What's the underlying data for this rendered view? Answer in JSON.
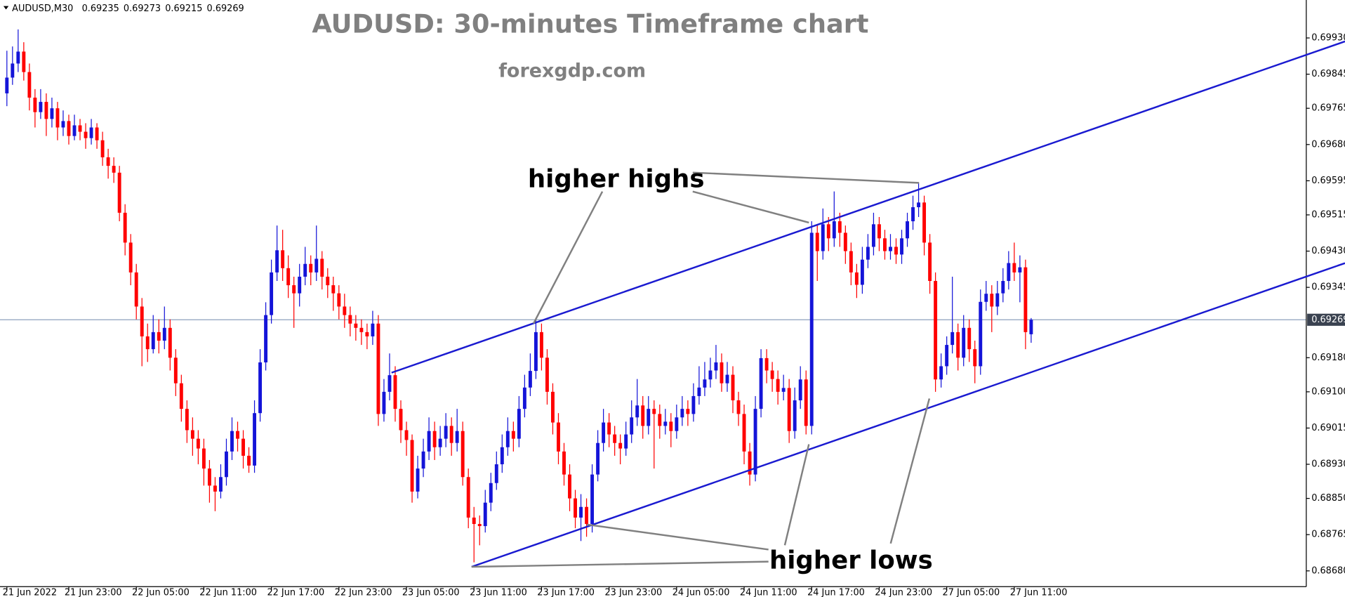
{
  "chart_data": {
    "type": "candlestick",
    "title": "AUDUSD: 30-minutes Timeframe chart",
    "subtitle": "forexgdp.com",
    "symbol": "AUDUSD,M30",
    "header_values": [
      0.69235,
      0.69273,
      0.69215,
      0.69269
    ],
    "annotations": [
      "higher highs",
      "higher lows"
    ],
    "up_color": "#1414d8",
    "down_color": "#ff0000",
    "grid": false,
    "ylim": [
      0.68643,
      0.70019
    ],
    "yticks": [
      {
        "value": 0.6993,
        "label": "0.69930"
      },
      0.69845,
      0.69765,
      {
        "value": 0.6968,
        "label": "0.69680"
      },
      0.69595,
      0.69515,
      {
        "value": 0.6943,
        "label": "0.69430"
      },
      0.69345,
      {
        "value": 0.6918,
        "label": "0.69180"
      },
      {
        "value": 0.691,
        "label": "0.69100"
      },
      0.69015,
      {
        "value": 0.6893,
        "label": "0.68930"
      },
      {
        "value": 0.6885,
        "label": "0.68850"
      },
      0.68765,
      {
        "value": 0.6868,
        "label": "0.68680"
      }
    ],
    "last_price": 0.69269,
    "categories": [
      "21 Jun 2022",
      null,
      null,
      null,
      null,
      null,
      null,
      null,
      null,
      null,
      null,
      "21 Jun 23:00",
      null,
      null,
      null,
      null,
      null,
      null,
      null,
      null,
      null,
      null,
      null,
      "22 Jun 05:00",
      null,
      null,
      null,
      null,
      null,
      null,
      null,
      null,
      null,
      null,
      null,
      "22 Jun 11:00",
      null,
      null,
      null,
      null,
      null,
      null,
      null,
      null,
      null,
      null,
      null,
      "22 Jun 17:00",
      null,
      null,
      null,
      null,
      null,
      null,
      null,
      null,
      null,
      null,
      null,
      "22 Jun 23:00",
      null,
      null,
      null,
      null,
      null,
      null,
      null,
      null,
      null,
      null,
      null,
      "23 Jun 05:00",
      null,
      null,
      null,
      null,
      null,
      null,
      null,
      null,
      null,
      null,
      null,
      "23 Jun 11:00",
      null,
      null,
      null,
      null,
      null,
      null,
      null,
      null,
      null,
      null,
      null,
      "23 Jun 17:00",
      null,
      null,
      null,
      null,
      null,
      null,
      null,
      null,
      null,
      null,
      null,
      "23 Jun 23:00",
      null,
      null,
      null,
      null,
      null,
      null,
      null,
      null,
      null,
      null,
      null,
      "24 Jun 05:00",
      null,
      null,
      null,
      null,
      null,
      null,
      null,
      null,
      null,
      null,
      null,
      "24 Jun 11:00",
      null,
      null,
      null,
      null,
      null,
      null,
      null,
      null,
      null,
      null,
      null,
      "24 Jun 17:00",
      null,
      null,
      null,
      null,
      null,
      null,
      null,
      null,
      null,
      null,
      null,
      "24 Jun 23:00",
      null,
      null,
      null,
      null,
      null,
      null,
      null,
      null,
      null,
      null,
      null,
      "27 Jun 05:00",
      null,
      null,
      null,
      null,
      null,
      null,
      null,
      null,
      null,
      null,
      null,
      "27 Jun 11:00",
      null,
      null,
      null
    ],
    "candles": [
      [
        0.698,
        0.699,
        0.6977,
        0.69837
      ],
      [
        0.69837,
        0.6991,
        0.6982,
        0.6987
      ],
      [
        0.6987,
        0.6995,
        0.6985,
        0.69898
      ],
      [
        0.69898,
        0.6992,
        0.6983,
        0.6985
      ],
      [
        0.6985,
        0.6987,
        0.6976,
        0.6979
      ],
      [
        0.6979,
        0.6981,
        0.6972,
        0.69756
      ],
      [
        0.69756,
        0.6981,
        0.6974,
        0.6978
      ],
      [
        0.6978,
        0.698,
        0.697,
        0.6974
      ],
      [
        0.6974,
        0.6979,
        0.6972,
        0.69765
      ],
      [
        0.69765,
        0.6978,
        0.6969,
        0.6972
      ],
      [
        0.6972,
        0.6976,
        0.697,
        0.69735
      ],
      [
        0.69735,
        0.6975,
        0.6968,
        0.697
      ],
      [
        0.697,
        0.6975,
        0.6969,
        0.69725
      ],
      [
        0.69725,
        0.6974,
        0.6969,
        0.6971
      ],
      [
        0.6971,
        0.6973,
        0.6967,
        0.69695
      ],
      [
        0.69695,
        0.6974,
        0.6968,
        0.6972
      ],
      [
        0.6972,
        0.6973,
        0.6967,
        0.6969
      ],
      [
        0.6969,
        0.6971,
        0.6963,
        0.6965
      ],
      [
        0.6965,
        0.6967,
        0.696,
        0.6963
      ],
      [
        0.6963,
        0.6965,
        0.6959,
        0.69614
      ],
      [
        0.69614,
        0.6963,
        0.695,
        0.6952
      ],
      [
        0.6952,
        0.6954,
        0.6942,
        0.6945
      ],
      [
        0.6945,
        0.6947,
        0.6935,
        0.6938
      ],
      [
        0.6938,
        0.694,
        0.6927,
        0.693
      ],
      [
        0.693,
        0.6932,
        0.6916,
        0.6923
      ],
      [
        0.6923,
        0.6926,
        0.6917,
        0.692
      ],
      [
        0.692,
        0.6928,
        0.6919,
        0.6924
      ],
      [
        0.6924,
        0.6927,
        0.6919,
        0.6922
      ],
      [
        0.6922,
        0.693,
        0.692,
        0.6925
      ],
      [
        0.6925,
        0.6927,
        0.6915,
        0.6918
      ],
      [
        0.6918,
        0.692,
        0.6909,
        0.6912
      ],
      [
        0.6912,
        0.6914,
        0.6903,
        0.6906
      ],
      [
        0.6906,
        0.6908,
        0.6898,
        0.6901
      ],
      [
        0.6901,
        0.6904,
        0.6895,
        0.6899
      ],
      [
        0.6899,
        0.6901,
        0.6893,
        0.68967
      ],
      [
        0.68967,
        0.6899,
        0.6888,
        0.6892
      ],
      [
        0.6892,
        0.6894,
        0.6884,
        0.6888
      ],
      [
        0.6888,
        0.689,
        0.6882,
        0.68866
      ],
      [
        0.68866,
        0.6893,
        0.6885,
        0.689
      ],
      [
        0.689,
        0.6899,
        0.6888,
        0.6896
      ],
      [
        0.6896,
        0.6904,
        0.6894,
        0.69008
      ],
      [
        0.69008,
        0.6903,
        0.6896,
        0.6899
      ],
      [
        0.6899,
        0.6901,
        0.6892,
        0.6895
      ],
      [
        0.6895,
        0.6897,
        0.6891,
        0.68927
      ],
      [
        0.68927,
        0.6908,
        0.6891,
        0.6905
      ],
      [
        0.6905,
        0.692,
        0.6903,
        0.69169
      ],
      [
        0.69169,
        0.6931,
        0.6915,
        0.6928
      ],
      [
        0.6928,
        0.6941,
        0.6926,
        0.6938
      ],
      [
        0.6938,
        0.6949,
        0.6936,
        0.69432
      ],
      [
        0.69432,
        0.6948,
        0.6936,
        0.6939
      ],
      [
        0.6939,
        0.6942,
        0.6932,
        0.6935
      ],
      [
        0.6935,
        0.6937,
        0.6925,
        0.69331
      ],
      [
        0.69331,
        0.694,
        0.693,
        0.6937
      ],
      [
        0.6937,
        0.6944,
        0.6935,
        0.694
      ],
      [
        0.694,
        0.6942,
        0.6935,
        0.6938
      ],
      [
        0.6938,
        0.6949,
        0.6936,
        0.69412
      ],
      [
        0.69412,
        0.6943,
        0.6934,
        0.6937
      ],
      [
        0.6937,
        0.6939,
        0.6932,
        0.6935
      ],
      [
        0.6935,
        0.6937,
        0.6929,
        0.69331
      ],
      [
        0.69331,
        0.6935,
        0.6927,
        0.693
      ],
      [
        0.693,
        0.6933,
        0.6925,
        0.6928
      ],
      [
        0.6928,
        0.693,
        0.6923,
        0.6926
      ],
      [
        0.6926,
        0.6928,
        0.6922,
        0.6925
      ],
      [
        0.6925,
        0.6927,
        0.6921,
        0.6924
      ],
      [
        0.6924,
        0.6926,
        0.692,
        0.6923
      ],
      [
        0.6923,
        0.6929,
        0.6921,
        0.6926
      ],
      [
        0.6926,
        0.6928,
        0.6902,
        0.69048
      ],
      [
        0.69048,
        0.6913,
        0.6903,
        0.691
      ],
      [
        0.691,
        0.6919,
        0.6908,
        0.69139
      ],
      [
        0.69139,
        0.6916,
        0.6903,
        0.6906
      ],
      [
        0.6906,
        0.6908,
        0.6898,
        0.6901
      ],
      [
        0.6901,
        0.6903,
        0.6895,
        0.68987
      ],
      [
        0.68987,
        0.69,
        0.6884,
        0.68866
      ],
      [
        0.68866,
        0.6895,
        0.6885,
        0.6892
      ],
      [
        0.6892,
        0.6899,
        0.689,
        0.6896
      ],
      [
        0.6896,
        0.6904,
        0.6894,
        0.69008
      ],
      [
        0.69008,
        0.6903,
        0.6894,
        0.6897
      ],
      [
        0.6897,
        0.6902,
        0.6895,
        0.6899
      ],
      [
        0.6899,
        0.6905,
        0.6897,
        0.6902
      ],
      [
        0.6902,
        0.6904,
        0.6895,
        0.6898
      ],
      [
        0.6898,
        0.6906,
        0.6896,
        0.69008
      ],
      [
        0.69008,
        0.6903,
        0.6888,
        0.689
      ],
      [
        0.689,
        0.6892,
        0.6878,
        0.68805
      ],
      [
        0.68805,
        0.6883,
        0.687,
        0.6879
      ],
      [
        0.6879,
        0.6881,
        0.6874,
        0.68785
      ],
      [
        0.68785,
        0.6887,
        0.6877,
        0.6884
      ],
      [
        0.6884,
        0.6891,
        0.6882,
        0.68886
      ],
      [
        0.68886,
        0.6896,
        0.6887,
        0.6893
      ],
      [
        0.6893,
        0.69,
        0.6891,
        0.6897
      ],
      [
        0.6897,
        0.6904,
        0.6895,
        0.69008
      ],
      [
        0.69008,
        0.6903,
        0.6896,
        0.6899
      ],
      [
        0.6899,
        0.6909,
        0.6897,
        0.6906
      ],
      [
        0.6906,
        0.6914,
        0.6904,
        0.6911
      ],
      [
        0.6911,
        0.6919,
        0.6909,
        0.69149
      ],
      [
        0.69149,
        0.6927,
        0.6913,
        0.6924
      ],
      [
        0.6924,
        0.6926,
        0.6915,
        0.6918
      ],
      [
        0.6918,
        0.692,
        0.6907,
        0.691
      ],
      [
        0.691,
        0.6912,
        0.69,
        0.69028
      ],
      [
        0.69028,
        0.6905,
        0.6893,
        0.6896
      ],
      [
        0.6896,
        0.6898,
        0.6888,
        0.68906
      ],
      [
        0.68906,
        0.6893,
        0.6882,
        0.6885
      ],
      [
        0.6885,
        0.6887,
        0.6878,
        0.68805
      ],
      [
        0.68805,
        0.6886,
        0.6875,
        0.6883
      ],
      [
        0.6883,
        0.6885,
        0.6876,
        0.6879
      ],
      [
        0.6879,
        0.6893,
        0.6877,
        0.68906
      ],
      [
        0.68906,
        0.6901,
        0.6889,
        0.6898
      ],
      [
        0.6898,
        0.6906,
        0.6896,
        0.69028
      ],
      [
        0.69028,
        0.6905,
        0.6897,
        0.69
      ],
      [
        0.69,
        0.6902,
        0.6895,
        0.6898
      ],
      [
        0.6898,
        0.69,
        0.6893,
        0.68967
      ],
      [
        0.68967,
        0.6903,
        0.6895,
        0.69
      ],
      [
        0.69,
        0.6908,
        0.6898,
        0.6904
      ],
      [
        0.6904,
        0.6913,
        0.6902,
        0.69068
      ],
      [
        0.69068,
        0.6909,
        0.6899,
        0.6902
      ],
      [
        0.6902,
        0.6909,
        0.69,
        0.6906
      ],
      [
        0.6906,
        0.6908,
        0.6892,
        0.69048
      ],
      [
        0.69048,
        0.6907,
        0.6899,
        0.6902
      ],
      [
        0.6902,
        0.6906,
        0.69,
        0.6903
      ],
      [
        0.6903,
        0.6905,
        0.6897,
        0.69008
      ],
      [
        0.69008,
        0.6907,
        0.6899,
        0.6904
      ],
      [
        0.6904,
        0.6909,
        0.6902,
        0.6906
      ],
      [
        0.6906,
        0.6908,
        0.6902,
        0.69048
      ],
      [
        0.69048,
        0.6912,
        0.6903,
        0.6909
      ],
      [
        0.6909,
        0.6916,
        0.6907,
        0.6911
      ],
      [
        0.6911,
        0.6917,
        0.6909,
        0.69129
      ],
      [
        0.69129,
        0.6918,
        0.6911,
        0.6915
      ],
      [
        0.6915,
        0.6921,
        0.6913,
        0.69169
      ],
      [
        0.69169,
        0.6919,
        0.691,
        0.6912
      ],
      [
        0.6912,
        0.6917,
        0.691,
        0.6914
      ],
      [
        0.6914,
        0.6916,
        0.6905,
        0.6908
      ],
      [
        0.6908,
        0.691,
        0.6902,
        0.69048
      ],
      [
        0.69048,
        0.6907,
        0.6893,
        0.6896
      ],
      [
        0.6896,
        0.6898,
        0.6888,
        0.68906
      ],
      [
        0.68906,
        0.6909,
        0.6889,
        0.6906
      ],
      [
        0.6906,
        0.692,
        0.6904,
        0.69179
      ],
      [
        0.69179,
        0.692,
        0.6912,
        0.6915
      ],
      [
        0.6915,
        0.6917,
        0.691,
        0.6913
      ],
      [
        0.6913,
        0.6915,
        0.6907,
        0.691
      ],
      [
        0.691,
        0.6914,
        0.6908,
        0.69109
      ],
      [
        0.69109,
        0.6913,
        0.6898,
        0.69008
      ],
      [
        0.69008,
        0.6911,
        0.6899,
        0.6908
      ],
      [
        0.6908,
        0.6916,
        0.6906,
        0.69129
      ],
      [
        0.69129,
        0.6915,
        0.69,
        0.6902
      ],
      [
        0.6902,
        0.695,
        0.69,
        0.69473
      ],
      [
        0.69473,
        0.6949,
        0.6936,
        0.6943
      ],
      [
        0.6943,
        0.6953,
        0.6941,
        0.69493
      ],
      [
        0.69493,
        0.6951,
        0.6943,
        0.6946
      ],
      [
        0.6946,
        0.6957,
        0.6944,
        0.695
      ],
      [
        0.695,
        0.6952,
        0.6944,
        0.69473
      ],
      [
        0.69473,
        0.6949,
        0.694,
        0.6943
      ],
      [
        0.6943,
        0.6945,
        0.6935,
        0.6938
      ],
      [
        0.6938,
        0.694,
        0.6932,
        0.69351
      ],
      [
        0.69351,
        0.6944,
        0.6933,
        0.6941
      ],
      [
        0.6941,
        0.6947,
        0.6939,
        0.6944
      ],
      [
        0.6944,
        0.6952,
        0.6942,
        0.69493
      ],
      [
        0.69493,
        0.6951,
        0.6943,
        0.6946
      ],
      [
        0.6946,
        0.6948,
        0.6941,
        0.6943
      ],
      [
        0.6943,
        0.6947,
        0.6941,
        0.6944
      ],
      [
        0.6944,
        0.6946,
        0.694,
        0.69422
      ],
      [
        0.69422,
        0.6948,
        0.694,
        0.6946
      ],
      [
        0.6946,
        0.6952,
        0.6944,
        0.695
      ],
      [
        0.695,
        0.6956,
        0.6948,
        0.69533
      ],
      [
        0.69533,
        0.6959,
        0.6951,
        0.69544
      ],
      [
        0.69544,
        0.6956,
        0.6942,
        0.6945
      ],
      [
        0.6945,
        0.6947,
        0.6933,
        0.6936
      ],
      [
        0.6936,
        0.6938,
        0.691,
        0.69129
      ],
      [
        0.69129,
        0.6919,
        0.6911,
        0.6916
      ],
      [
        0.6916,
        0.6923,
        0.6914,
        0.6921
      ],
      [
        0.6921,
        0.6937,
        0.6919,
        0.6924
      ],
      [
        0.6924,
        0.6926,
        0.6915,
        0.6918
      ],
      [
        0.6918,
        0.6928,
        0.6916,
        0.6925
      ],
      [
        0.6925,
        0.6927,
        0.6917,
        0.692
      ],
      [
        0.692,
        0.6922,
        0.6912,
        0.6916
      ],
      [
        0.6916,
        0.6934,
        0.6914,
        0.69311
      ],
      [
        0.69311,
        0.6936,
        0.6929,
        0.6933
      ],
      [
        0.6933,
        0.6935,
        0.6924,
        0.693
      ],
      [
        0.693,
        0.6936,
        0.6928,
        0.69331
      ],
      [
        0.69331,
        0.6939,
        0.6931,
        0.6936
      ],
      [
        0.6936,
        0.6943,
        0.6934,
        0.69402
      ],
      [
        0.69402,
        0.6945,
        0.6936,
        0.6938
      ],
      [
        0.6938,
        0.6942,
        0.6931,
        0.69392
      ],
      [
        0.69392,
        0.6941,
        0.692,
        0.6924
      ],
      [
        0.69235,
        0.69273,
        0.69215,
        0.69269
      ]
    ]
  }
}
